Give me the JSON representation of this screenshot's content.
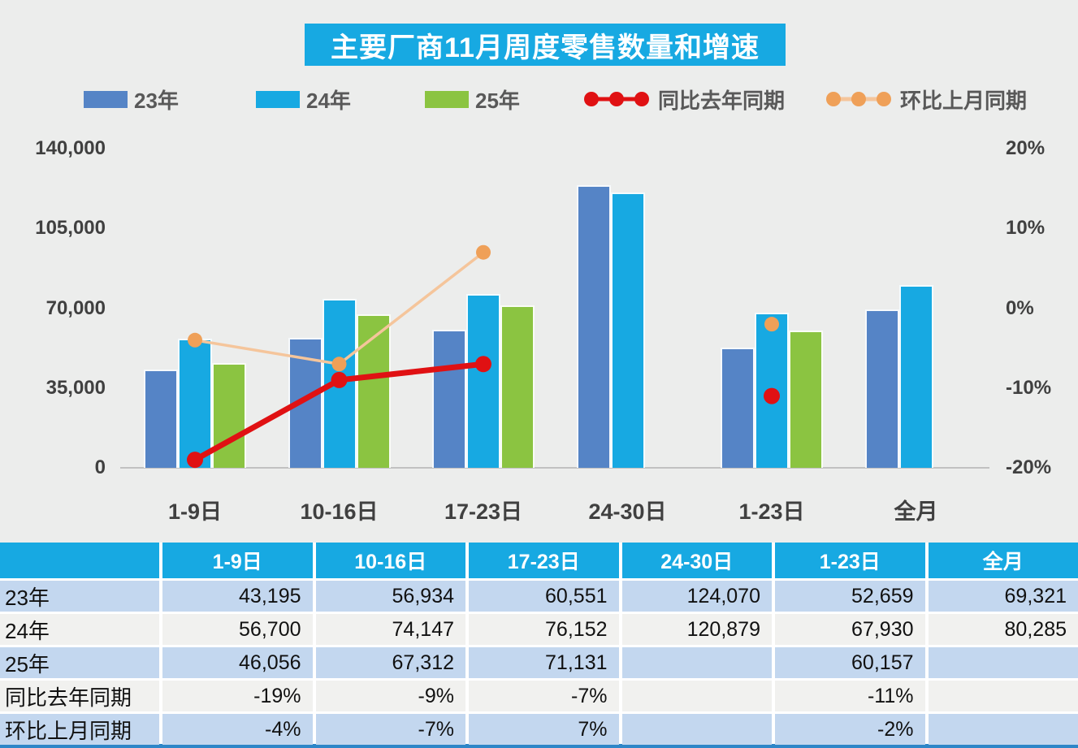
{
  "title": "主要厂商11月周度零售数量和增速",
  "legend": [
    {
      "label": "23年",
      "type": "bar",
      "color": "#5584C6"
    },
    {
      "label": "24年",
      "type": "bar",
      "color": "#17A9E2"
    },
    {
      "label": "25年",
      "type": "bar",
      "color": "#8BC441"
    },
    {
      "label": "同比去年同期",
      "type": "line",
      "color": "#E01113",
      "line_color": "#E01113"
    },
    {
      "label": "环比上月同期",
      "type": "line",
      "color": "#EFA058",
      "line_color": "#F5C59B"
    }
  ],
  "chart_data": {
    "type": "bar+line",
    "categories": [
      "1-9日",
      "10-16日",
      "17-23日",
      "24-30日",
      "1-23日",
      "全月"
    ],
    "series": [
      {
        "name": "23年",
        "type": "bar",
        "color": "#5584C6",
        "values": [
          43195,
          56934,
          60551,
          124070,
          52659,
          69321
        ]
      },
      {
        "name": "24年",
        "type": "bar",
        "color": "#17A9E2",
        "values": [
          56700,
          74147,
          76152,
          120879,
          67930,
          80285
        ]
      },
      {
        "name": "25年",
        "type": "bar",
        "color": "#8BC441",
        "values": [
          46056,
          67312,
          71131,
          null,
          60157,
          null
        ]
      },
      {
        "name": "同比去年同期",
        "type": "line",
        "color": "#E01113",
        "line_color": "#E01113",
        "line_width": 7,
        "marker_r": 10,
        "values_pct": [
          -19,
          -9,
          -7,
          null,
          -11,
          null
        ]
      },
      {
        "name": "环比上月同期",
        "type": "line",
        "color": "#EFA058",
        "line_color": "#F5C59B",
        "line_width": 3.5,
        "marker_r": 9,
        "values_pct": [
          -4,
          -7,
          7,
          null,
          -2,
          null
        ]
      }
    ],
    "y_left": {
      "ticks": [
        "140,000",
        "105,000",
        "70,000",
        "35,000",
        "0"
      ],
      "tick_values": [
        140000,
        105000,
        70000,
        35000,
        0
      ],
      "min": 0,
      "max": 140000
    },
    "y_right": {
      "ticks": [
        "20%",
        "10%",
        "0%",
        "-10%",
        "-20%"
      ],
      "tick_values": [
        20,
        10,
        0,
        -10,
        -20
      ],
      "min": -20,
      "max": 20
    },
    "grid": false,
    "legend_position": "top"
  },
  "table": {
    "header": [
      "",
      "1-9日",
      "10-16日",
      "17-23日",
      "24-30日",
      "1-23日",
      "全月"
    ],
    "rows": [
      {
        "label": "23年",
        "cells": [
          "43,195",
          "56,934",
          "60,551",
          "124,070",
          "52,659",
          "69,321"
        ]
      },
      {
        "label": "24年",
        "cells": [
          "56,700",
          "74,147",
          "76,152",
          "120,879",
          "67,930",
          "80,285"
        ]
      },
      {
        "label": "25年",
        "cells": [
          "46,056",
          "67,312",
          "71,131",
          "",
          "60,157",
          ""
        ]
      },
      {
        "label": "同比去年同期",
        "cells": [
          "-19%",
          "-9%",
          "-7%",
          "",
          "-11%",
          ""
        ]
      },
      {
        "label": "环比上月同期",
        "cells": [
          "-4%",
          "-7%",
          "7%",
          "",
          "-2%",
          ""
        ]
      }
    ]
  },
  "colors": {
    "accent_cyan": "#17A9E2",
    "page_bg": "#ECEDEC",
    "axis_text": "#404040",
    "row_blue": "#C3D7EF",
    "row_gray": "#F1F1EF",
    "table_bottom_border": "#2E86C8",
    "baseline": "#C1C1C1"
  }
}
